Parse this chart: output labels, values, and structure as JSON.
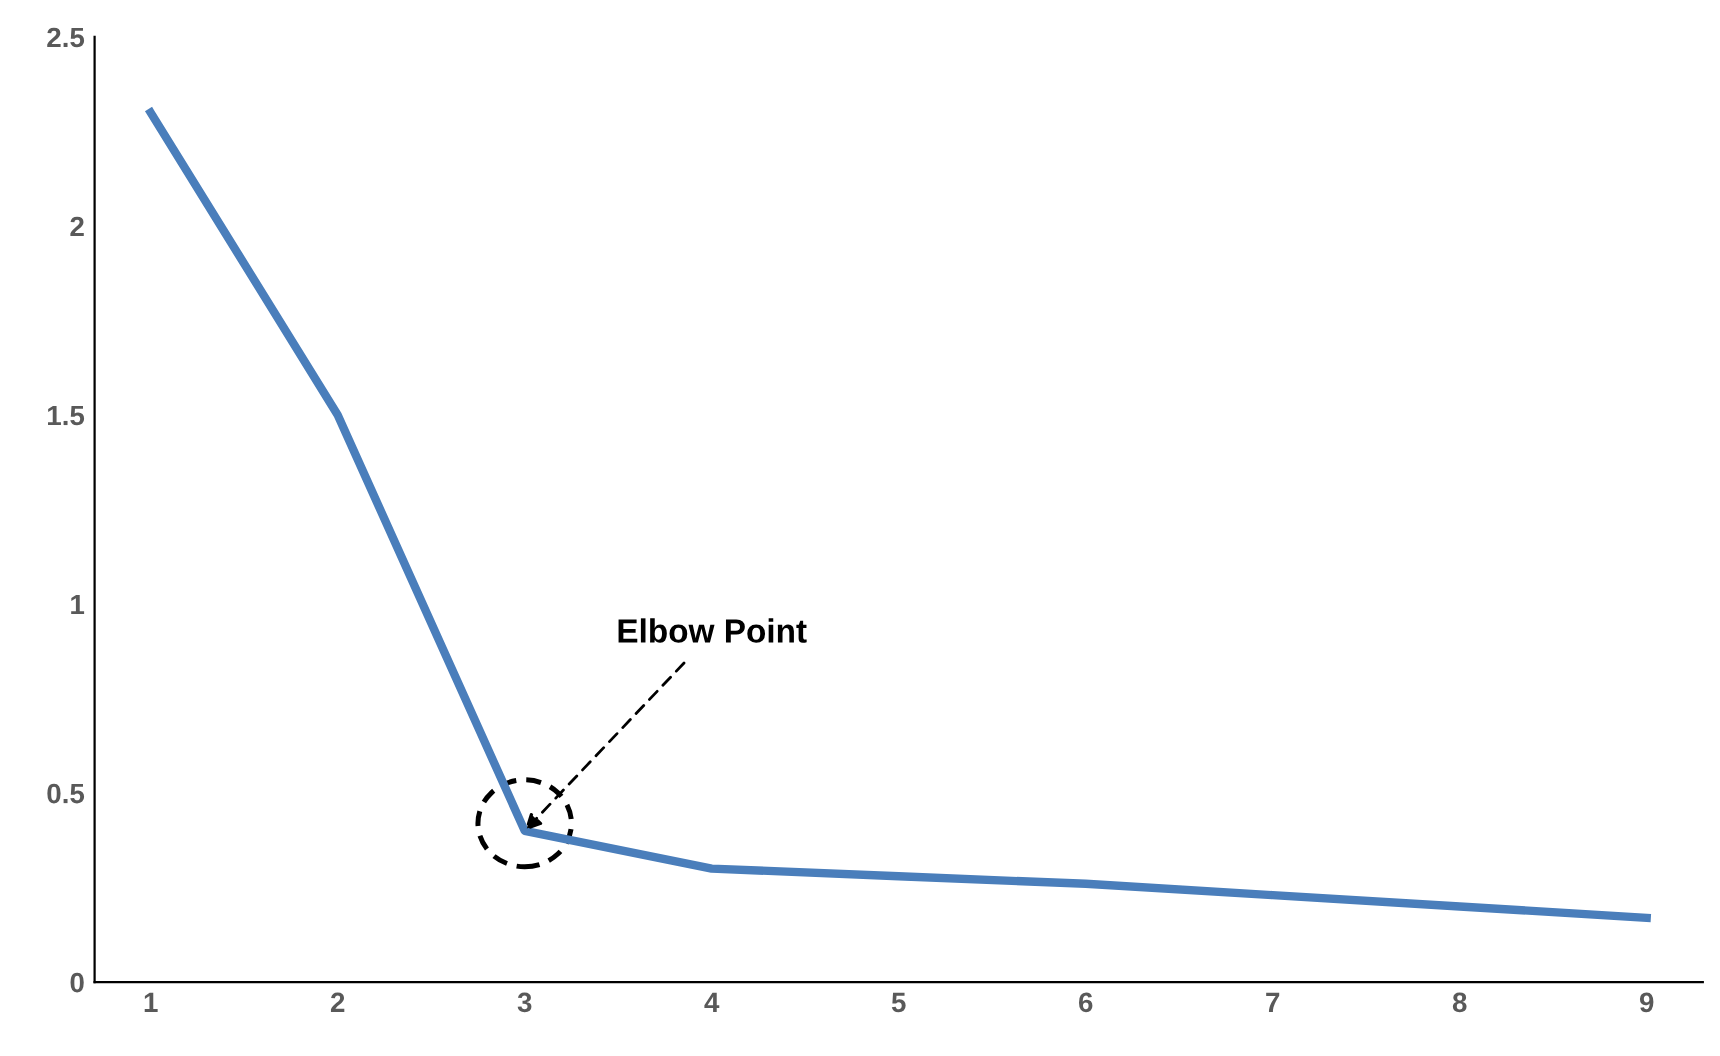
{
  "chart_data": {
    "type": "line",
    "categories": [
      "1",
      "2",
      "3",
      "4",
      "5",
      "6",
      "7",
      "8",
      "9"
    ],
    "series": [
      {
        "color": "#4a7ebb",
        "values": [
          2.3,
          1.5,
          0.4,
          0.3,
          0.28,
          0.26,
          0.23,
          0.2,
          0.17
        ]
      }
    ],
    "ylim": [
      0,
      2.5
    ],
    "yticks": [
      0,
      0.5,
      1,
      1.5,
      2,
      2.5
    ],
    "grid": false,
    "legend": false,
    "marker": "none",
    "line_style": "solid",
    "annotations": [
      {
        "text": "Elbow Point",
        "x": "3",
        "y": 0.4
      }
    ]
  }
}
